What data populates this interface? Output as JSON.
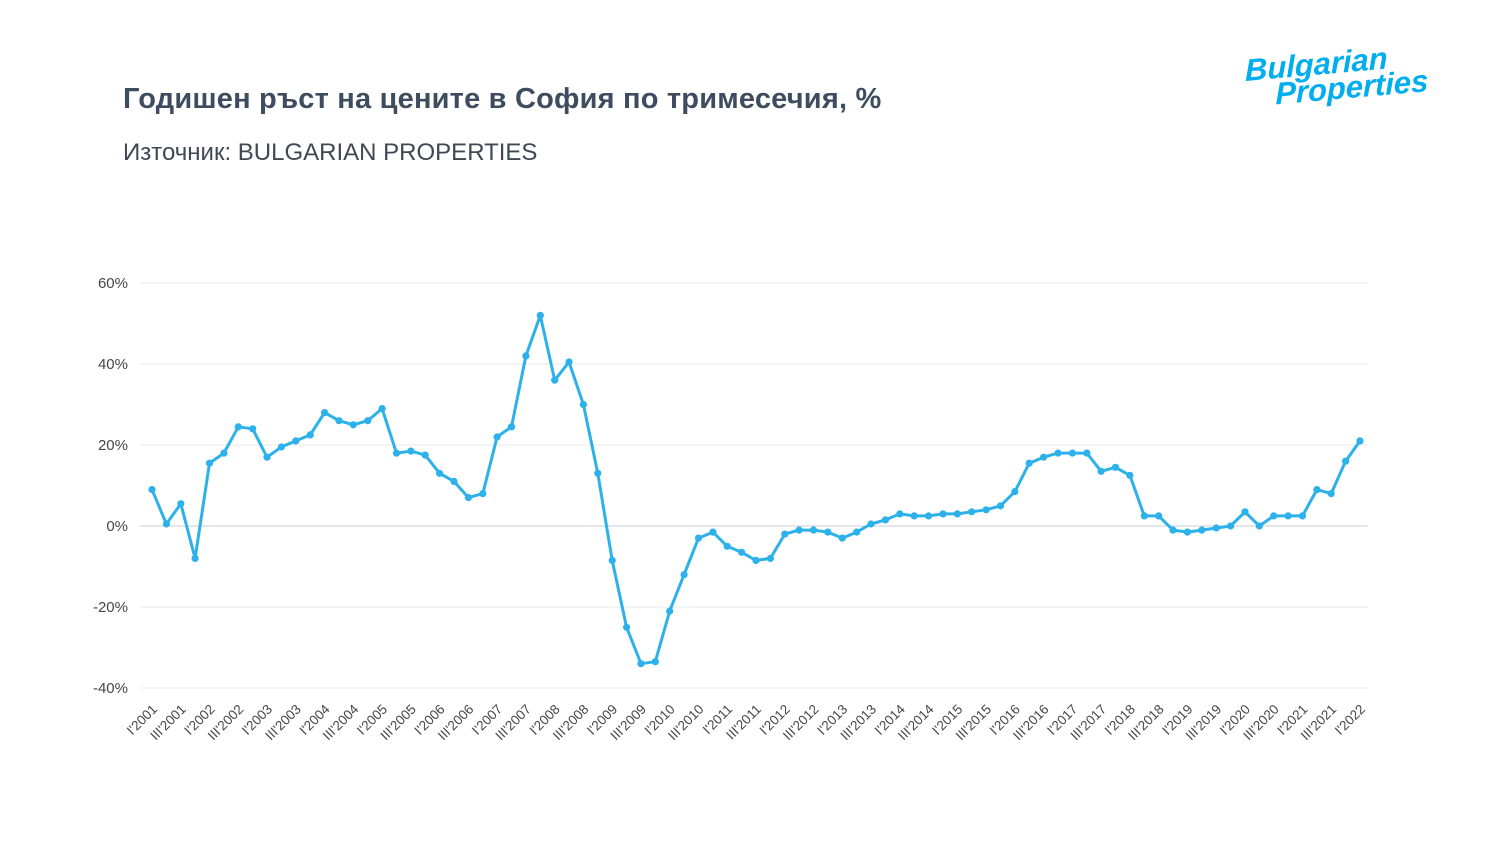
{
  "header": {
    "title": "Годишен ръст на цените в София по тримесечия, %",
    "source": "Източник: BULGARIAN PROPERTIES"
  },
  "logo": {
    "line1": "Bulgarian",
    "line2": "Properties",
    "color": "#00AEEF"
  },
  "chart_data": {
    "type": "line",
    "title": "Годишен ръст на цените в София по тримесечия, %",
    "line_color": "#2CB1EA",
    "point_color": "#2CB1EA",
    "grid": true,
    "legend": false,
    "ylim": [
      -40,
      60
    ],
    "yticks": [
      60,
      40,
      20,
      0,
      -20,
      -40
    ],
    "ytick_suffix": "%",
    "x_tick_rotation": -45,
    "x_ticks_shown": "every_other",
    "x": [
      "I'2001",
      "II'2001",
      "III'2001",
      "IV'2001",
      "I'2002",
      "II'2002",
      "III'2002",
      "IV'2002",
      "I'2003",
      "II'2003",
      "III'2003",
      "IV'2003",
      "I'2004",
      "II'2004",
      "III'2004",
      "IV'2004",
      "I'2005",
      "II'2005",
      "III'2005",
      "IV'2005",
      "I'2006",
      "II'2006",
      "III'2006",
      "IV'2006",
      "I'2007",
      "II'2007",
      "III'2007",
      "IV'2007",
      "I'2008",
      "II'2008",
      "III'2008",
      "IV'2008",
      "I'2009",
      "II'2009",
      "III'2009",
      "IV'2009",
      "I'2010",
      "II'2010",
      "III'2010",
      "IV'2010",
      "I'2011",
      "II'2011",
      "III'2011",
      "IV'2011",
      "I'2012",
      "II'2012",
      "III'2012",
      "IV'2012",
      "I'2013",
      "II'2013",
      "III'2013",
      "IV'2013",
      "I'2014",
      "II'2014",
      "III'2014",
      "IV'2014",
      "I'2015",
      "II'2015",
      "III'2015",
      "IV'2015",
      "I'2016",
      "II'2016",
      "III'2016",
      "IV'2016",
      "I'2017",
      "II'2017",
      "III'2017",
      "IV'2017",
      "I'2018",
      "II'2018",
      "III'2018",
      "IV'2018",
      "I'2019",
      "II'2019",
      "III'2019",
      "IV'2019",
      "I'2020",
      "II'2020",
      "III'2020",
      "IV'2020",
      "I'2021",
      "II'2021",
      "III'2021",
      "IV'2021",
      "I'2022"
    ],
    "values": [
      9,
      0.5,
      5.5,
      -8,
      15.5,
      18,
      24.5,
      24,
      17,
      19.5,
      21,
      22.5,
      28,
      26,
      25,
      26,
      29,
      18,
      18.5,
      17.5,
      13,
      11,
      7,
      8,
      22,
      24.5,
      42,
      52,
      36,
      40.5,
      30,
      13,
      -8.5,
      -25,
      -34,
      -33.5,
      -21,
      -12,
      -3,
      -1.5,
      -5,
      -6.5,
      -8.5,
      -8,
      -2,
      -1,
      -1,
      -1.5,
      -3,
      -1.5,
      0.5,
      1.5,
      3,
      2.5,
      2.5,
      3,
      3,
      3.5,
      4,
      5,
      8.5,
      15.5,
      17,
      18,
      18,
      18,
      13.5,
      14.5,
      12.5,
      2.5,
      2.5,
      -1,
      -1.5,
      -1,
      -0.5,
      0,
      3.5,
      0,
      2.5,
      2.5,
      2.5,
      9,
      8,
      16,
      21
    ]
  }
}
